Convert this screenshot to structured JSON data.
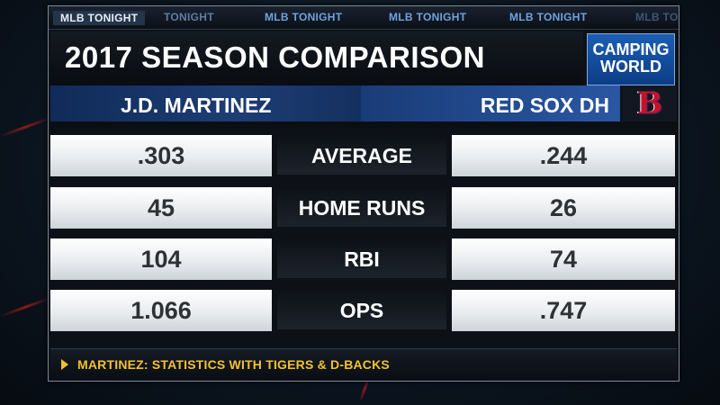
{
  "ticker": {
    "items": [
      "MLB TONIGHT",
      "TONIGHT",
      "MLB TONIGHT",
      "MLB TONIGHT",
      "MLB TONIGHT",
      "MLB TO"
    ]
  },
  "header": {
    "title": "2017 SEASON COMPARISON"
  },
  "sponsor": {
    "line1": "CAMPING",
    "line2": "WORLD"
  },
  "comparison": {
    "left_name": "J.D. MARTINEZ",
    "right_name": "RED SOX DH",
    "team_logo_letter": "B",
    "rows": [
      {
        "left": ".303",
        "stat": "AVERAGE",
        "right": ".244"
      },
      {
        "left": "45",
        "stat": "HOME RUNS",
        "right": "26"
      },
      {
        "left": "104",
        "stat": "RBI",
        "right": "74"
      },
      {
        "left": "1.066",
        "stat": "OPS",
        "right": ".747"
      }
    ]
  },
  "footer": {
    "note": "MARTINEZ: STATISTICS WITH TIGERS & D-BACKS"
  },
  "colors": {
    "accent_blue": "#1d3d74",
    "footer_yellow": "#f2c12e",
    "logo_red": "#c8102e"
  }
}
